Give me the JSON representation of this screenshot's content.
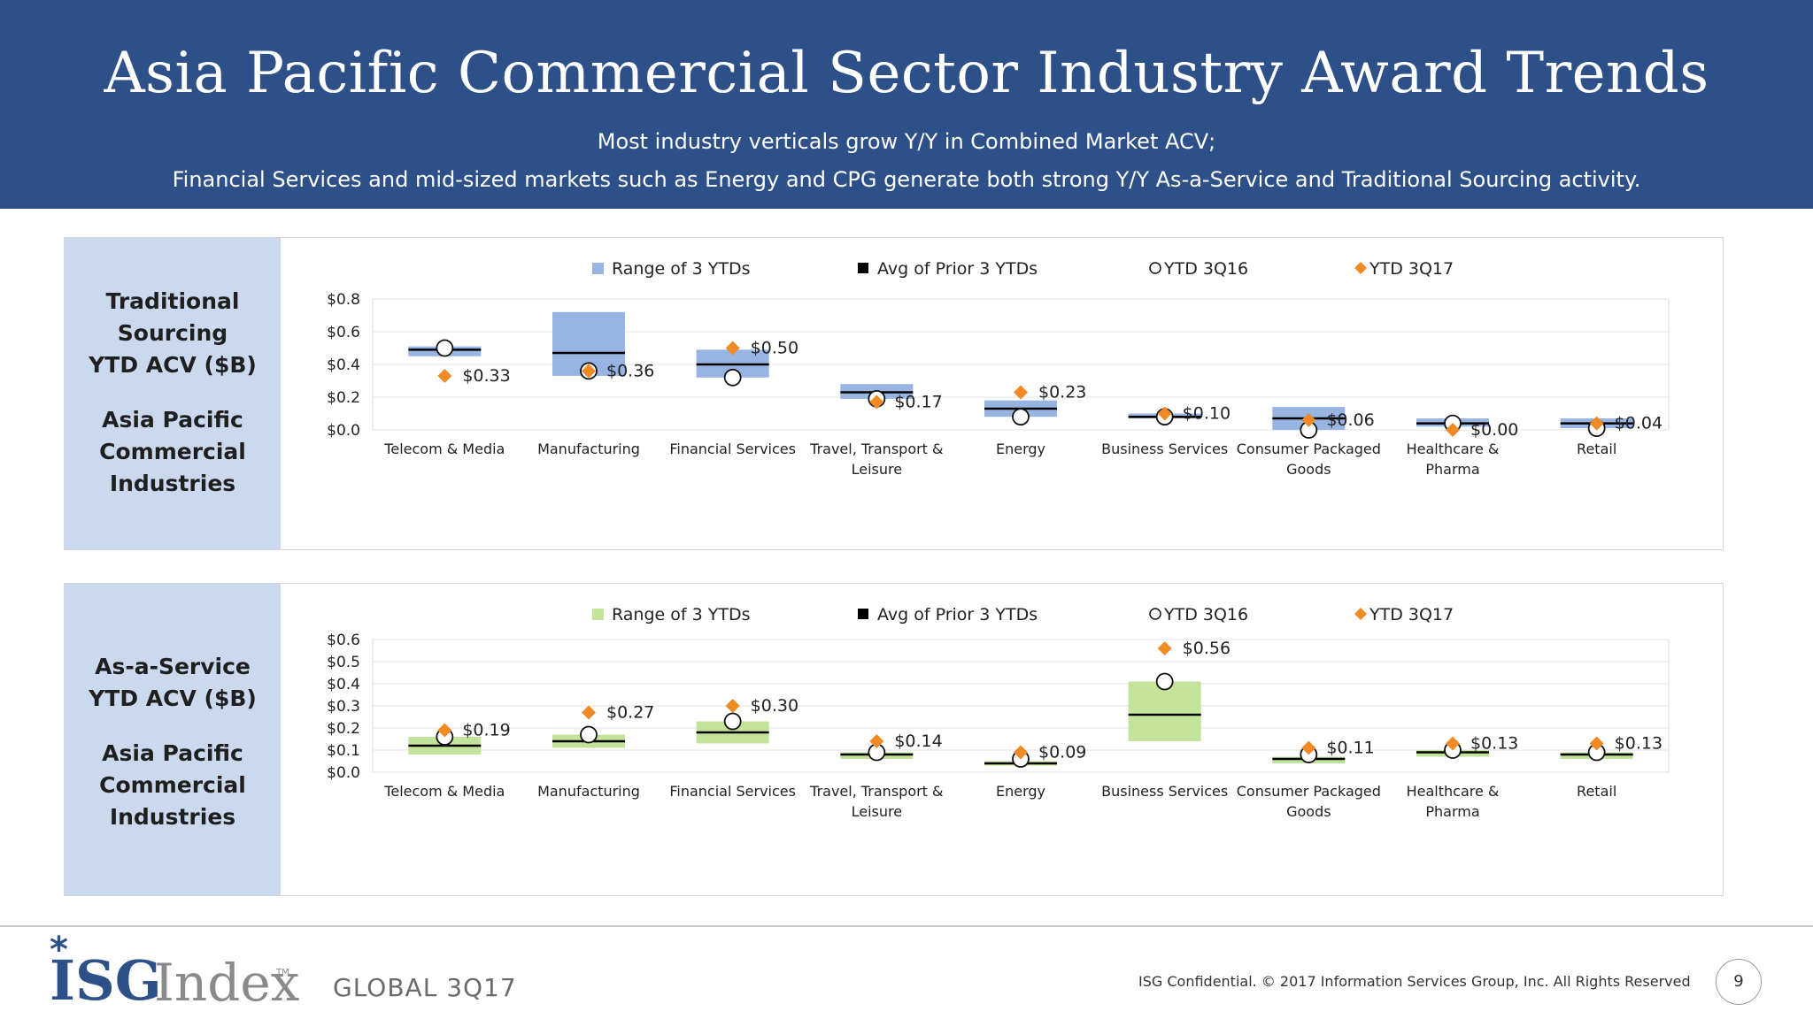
{
  "header": {
    "title": "Asia Pacific Commercial Sector Industry Award Trends",
    "subtitle_1": "Most industry verticals grow Y/Y in Combined Market ACV;",
    "subtitle_2": "Financial Services and mid-sized markets such as Energy and CPG generate both strong Y/Y As-a-Service and Traditional Sourcing activity."
  },
  "legend": {
    "range": "Range of 3 YTDs",
    "avg": "Avg of Prior 3 YTDs",
    "ytd16": "YTD 3Q16",
    "ytd17": "YTD 3Q17"
  },
  "colors": {
    "header_bg": "#2e5088",
    "traditional_range": "#98b4e3",
    "aas_range": "#c3e39a",
    "ytd17_marker": "#f08a24",
    "label_panel_bg": "#cbd9ef"
  },
  "panels": [
    {
      "label_1": [
        "Traditional",
        "Sourcing",
        "YTD ACV ($B)"
      ],
      "label_2": [
        "Asia Pacific",
        "Commercial",
        "Industries"
      ]
    },
    {
      "label_1": [
        "As-a-Service",
        "YTD ACV ($B)"
      ],
      "label_2": [
        "Asia Pacific",
        "Commercial",
        "Industries"
      ]
    }
  ],
  "chart_data": [
    {
      "type": "box-range",
      "ylim": [
        0,
        0.8
      ],
      "yticks": [
        "$0.0",
        "$0.2",
        "$0.4",
        "$0.6",
        "$0.8"
      ],
      "ytick_values": [
        0,
        0.2,
        0.4,
        0.6,
        0.8
      ],
      "categories": [
        [
          "Telecom & Media"
        ],
        [
          "Manufacturing"
        ],
        [
          "Financial Services"
        ],
        [
          "Travel, Transport &",
          "Leisure"
        ],
        [
          "Energy"
        ],
        [
          "Business Services"
        ],
        [
          "Consumer Packaged",
          "Goods"
        ],
        [
          "Healthcare &",
          "Pharma"
        ],
        [
          "Retail"
        ]
      ],
      "range_low": [
        0.45,
        0.33,
        0.32,
        0.19,
        0.08,
        0.07,
        0.0,
        0.02,
        0.01
      ],
      "range_high": [
        0.51,
        0.72,
        0.49,
        0.28,
        0.18,
        0.1,
        0.14,
        0.07,
        0.07
      ],
      "avg_prior": [
        0.49,
        0.47,
        0.4,
        0.23,
        0.13,
        0.08,
        0.07,
        0.04,
        0.04
      ],
      "ytd_3q16": [
        0.5,
        0.36,
        0.32,
        0.19,
        0.08,
        0.08,
        0.0,
        0.04,
        0.01
      ],
      "ytd_3q17": [
        0.33,
        0.36,
        0.5,
        0.17,
        0.23,
        0.1,
        0.06,
        0.0,
        0.04
      ],
      "ytd_3q17_labels": [
        "$0.33",
        "$0.36",
        "$0.50",
        "$0.17",
        "$0.23",
        "$0.10",
        "$0.06",
        "$0.00",
        "$0.04"
      ]
    },
    {
      "type": "box-range",
      "ylim": [
        0,
        0.6
      ],
      "yticks": [
        "$0.0",
        "$0.1",
        "$0.2",
        "$0.3",
        "$0.4",
        "$0.5",
        "$0.6"
      ],
      "ytick_values": [
        0,
        0.1,
        0.2,
        0.3,
        0.4,
        0.5,
        0.6
      ],
      "categories": [
        [
          "Telecom & Media"
        ],
        [
          "Manufacturing"
        ],
        [
          "Financial Services"
        ],
        [
          "Travel, Transport &",
          "Leisure"
        ],
        [
          "Energy"
        ],
        [
          "Business Services"
        ],
        [
          "Consumer Packaged",
          "Goods"
        ],
        [
          "Healthcare &",
          "Pharma"
        ],
        [
          "Retail"
        ]
      ],
      "range_low": [
        0.08,
        0.11,
        0.13,
        0.06,
        0.03,
        0.14,
        0.04,
        0.07,
        0.06
      ],
      "range_high": [
        0.16,
        0.17,
        0.23,
        0.09,
        0.05,
        0.41,
        0.07,
        0.1,
        0.09
      ],
      "avg_prior": [
        0.12,
        0.14,
        0.18,
        0.08,
        0.04,
        0.26,
        0.06,
        0.09,
        0.08
      ],
      "ytd_3q16": [
        0.16,
        0.17,
        0.23,
        0.09,
        0.06,
        0.41,
        0.08,
        0.1,
        0.09
      ],
      "ytd_3q17": [
        0.19,
        0.27,
        0.3,
        0.14,
        0.09,
        0.56,
        0.11,
        0.13,
        0.13
      ],
      "ytd_3q17_labels": [
        "$0.19",
        "$0.27",
        "$0.30",
        "$0.14",
        "$0.09",
        "$0.56",
        "$0.11",
        "$0.13",
        "$0.13"
      ]
    }
  ],
  "footer": {
    "logo_main": "ISG",
    "logo_sub": "Index",
    "logo_tm": "TM",
    "edition": "GLOBAL 3Q17",
    "copyright": "ISG Confidential. © 2017 Information Services Group, Inc.  All Rights Reserved",
    "page": "9"
  }
}
